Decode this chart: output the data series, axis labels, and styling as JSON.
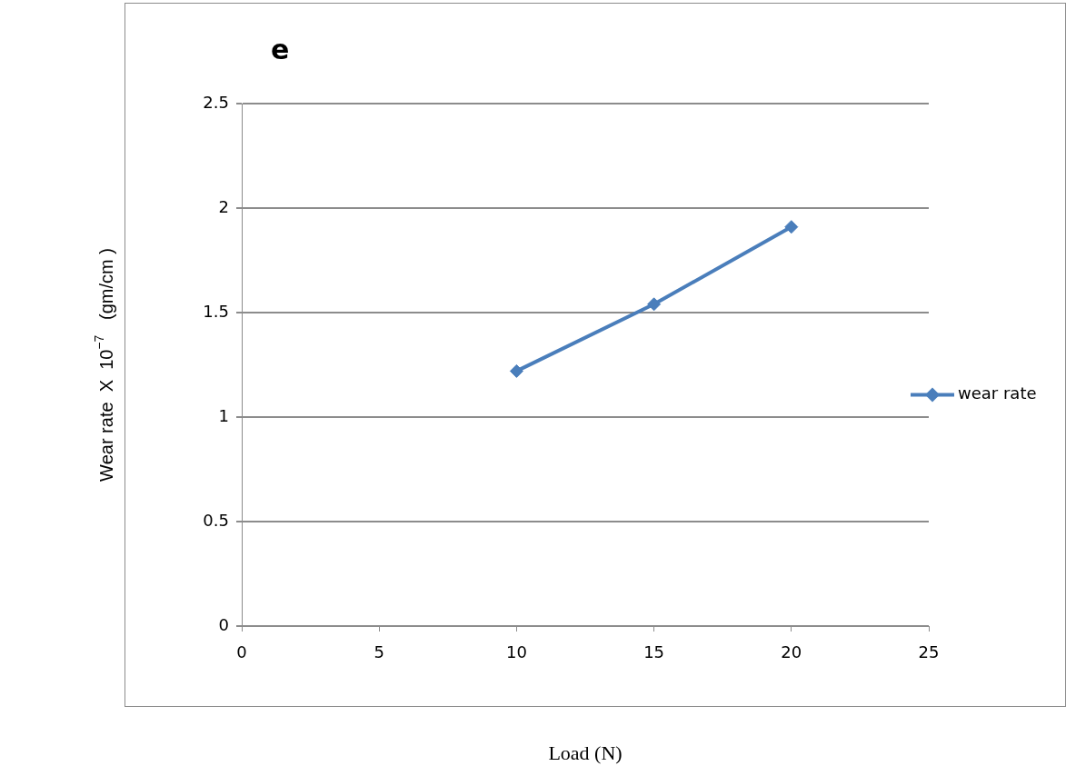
{
  "chart_data": {
    "type": "line",
    "title": "e",
    "xlabel": "Load (N)",
    "ylabel": "Wear rate  X  10$^{−7}$   (gm/cm )",
    "x": [
      10,
      15,
      20
    ],
    "series": [
      {
        "name": "wear rate",
        "color": "#4a7ebb",
        "values": [
          1.22,
          1.54,
          1.91
        ]
      }
    ],
    "xlim": [
      0,
      25
    ],
    "xticks": [
      0,
      5,
      10,
      15,
      20,
      25
    ],
    "ylim": [
      0,
      2.5
    ],
    "yticks": [
      0,
      0.5,
      1,
      1.5,
      2,
      2.5
    ],
    "grid": "y",
    "legend": "right",
    "marker": "diamond",
    "line_style": "solid"
  }
}
